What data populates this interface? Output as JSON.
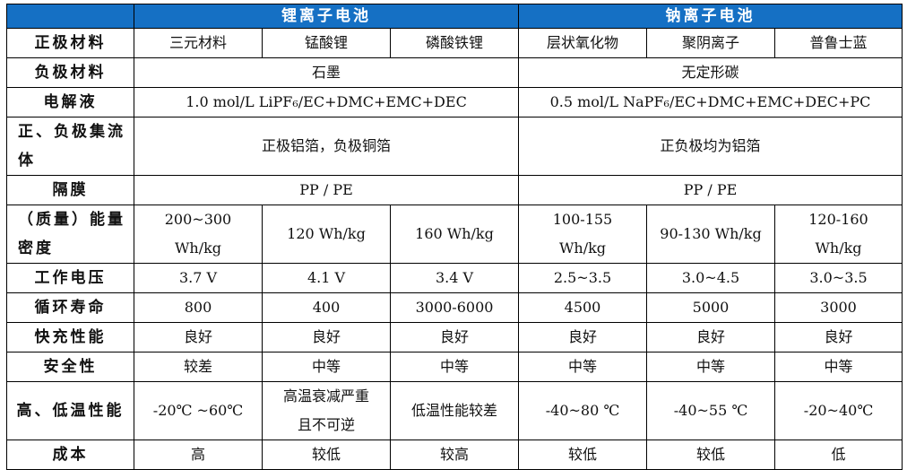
{
  "header": {
    "li_ion": "锂离子电池",
    "na_ion": "钠离子电池"
  },
  "rows": {
    "cathode": {
      "label": "正极材料",
      "c1": "三元材料",
      "c2": "锰酸锂",
      "c3": "磷酸铁锂",
      "c4": "层状氧化物",
      "c5": "聚阴离子",
      "c6": "普鲁士蓝"
    },
    "anode": {
      "label": "负极材料",
      "li": "石墨",
      "na": "无定形碳"
    },
    "electrolyte": {
      "label": "电解液",
      "li": "1.0 mol/L LiPF₆/EC+DMC+EMC+DEC",
      "na": "0.5 mol/L NaPF₆/EC+DMC+EMC+DEC+PC"
    },
    "collector": {
      "label_line1": "正、负极集流",
      "label_line2": "体",
      "li": "正极铝箔，负极铜箔",
      "na": "正负极均为铝箔"
    },
    "separator": {
      "label": "隔膜",
      "li": "PP / PE",
      "na": "PP / PE"
    },
    "energy": {
      "label_line1": "（质量）能量",
      "label_line2": "密度",
      "c1_line1": "200~300",
      "c1_line2": "Wh/kg",
      "c2": "120 Wh/kg",
      "c3": "160 Wh/kg",
      "c4_line1": "100-155",
      "c4_line2": "Wh/kg",
      "c5": "90-130 Wh/kg",
      "c6_line1": "120-160",
      "c6_line2": "Wh/kg"
    },
    "voltage": {
      "label": "工作电压",
      "c1": "3.7 V",
      "c2": "4.1 V",
      "c3": "3.4 V",
      "c4": "2.5~3.5",
      "c5": "3.0~4.5",
      "c6": "3.0~3.5"
    },
    "cycle": {
      "label": "循环寿命",
      "c1": "800",
      "c2": "400",
      "c3": "3000-6000",
      "c4": "4500",
      "c5": "5000",
      "c6": "3000"
    },
    "fastcharge": {
      "label": "快充性能",
      "c1": "良好",
      "c2": "良好",
      "c3": "良好",
      "c4": "良好",
      "c5": "良好",
      "c6": "良好"
    },
    "safety": {
      "label": "安全性",
      "c1": "较差",
      "c2": "中等",
      "c3": "中等",
      "c4": "中等",
      "c5": "中等",
      "c6": "中等"
    },
    "temperature": {
      "label": "高、低温性能",
      "c1": "-20℃ ~60℃",
      "c2_line1": "高温衰减严重",
      "c2_line2": "且不可逆",
      "c3": "低温性能较差",
      "c4": "-40~80 ℃",
      "c5": "-40~55 ℃",
      "c6": "-20~40℃"
    },
    "cost": {
      "label": "成本",
      "c1": "高",
      "c2": "较低",
      "c3": "较高",
      "c4": "较低",
      "c5": "较低",
      "c6": "低"
    }
  }
}
